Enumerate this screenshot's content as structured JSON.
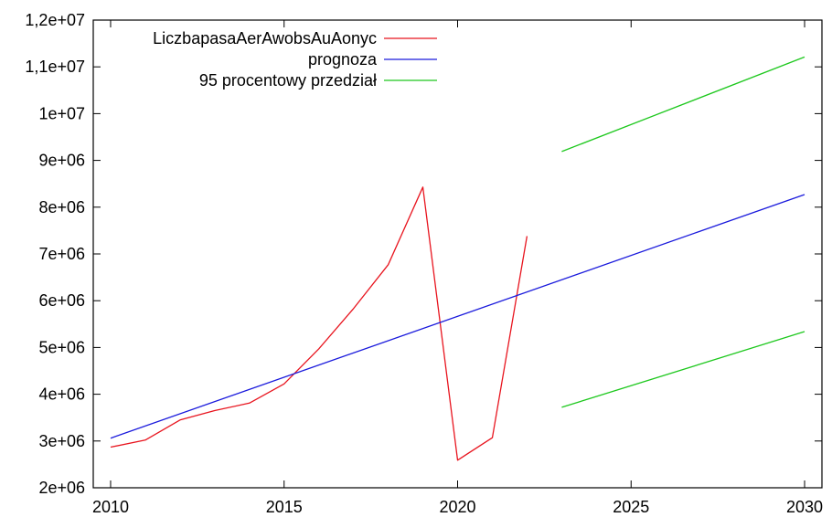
{
  "chart_data": {
    "type": "line",
    "title": "",
    "xlabel": "",
    "ylabel": "",
    "xlim": [
      2009.5,
      2030.5
    ],
    "ylim": [
      2000000,
      12000000
    ],
    "grid": false,
    "legend_position": "top-left",
    "x_ticks": [
      2010,
      2015,
      2020,
      2025,
      2030
    ],
    "x_tick_labels": [
      "2010",
      "2015",
      "2020",
      "2025",
      "2030"
    ],
    "y_ticks": [
      2000000,
      3000000,
      4000000,
      5000000,
      6000000,
      7000000,
      8000000,
      9000000,
      10000000,
      11000000,
      12000000
    ],
    "y_tick_labels": [
      "2e+06",
      "3e+06",
      "4e+06",
      "5e+06",
      "6e+06",
      "7e+06",
      "8e+06",
      "9e+06",
      "1e+07",
      "1,1e+07",
      "1,2e+07"
    ],
    "series": [
      {
        "name": "LiczbapasaAerAwobsAuAonyc",
        "color": "#e8141e",
        "x": [
          2010,
          2011,
          2012,
          2013,
          2014,
          2015,
          2016,
          2017,
          2018,
          2019,
          2020,
          2021,
          2022
        ],
        "y": [
          2870000,
          3020000,
          3450000,
          3650000,
          3810000,
          4220000,
          4970000,
          5830000,
          6770000,
          8430000,
          2590000,
          3070000,
          7380000
        ]
      },
      {
        "name": "prognoza",
        "color": "#1a1adc",
        "x": [
          2010,
          2030
        ],
        "y": [
          3060000,
          8270000
        ]
      },
      {
        "name": "95 procentowy przedział",
        "color": "#1ec81e",
        "x": [
          2023,
          2030
        ],
        "y": [
          9190000,
          11210000
        ]
      },
      {
        "name": "",
        "color": "#1ec81e",
        "x": [
          2023,
          2030
        ],
        "y": [
          3720000,
          5340000
        ]
      }
    ]
  }
}
